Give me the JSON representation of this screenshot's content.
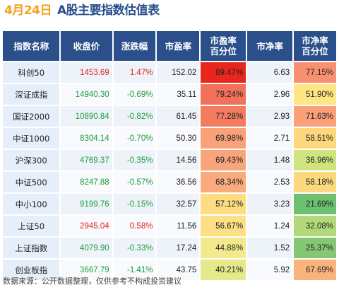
{
  "header": {
    "date": "4月24日",
    "title": "A股主要指数估值表"
  },
  "columns": [
    "指数名称",
    "收盘价",
    "涨跌幅",
    "市盈率",
    "市盈率\n百分位",
    "市净率",
    "市净率\n百分位"
  ],
  "rows": [
    {
      "name": "科创50",
      "close": "1453.69",
      "change": "1.47%",
      "pe": "152.02",
      "pe_pct": "89.47%",
      "pb": "6.63",
      "pb_pct": "77.15%",
      "dir": "up",
      "pe_color": "#e8261c",
      "pb_color": "#f99070"
    },
    {
      "name": "深证成指",
      "close": "14940.30",
      "change": "-0.69%",
      "pe": "35.11",
      "pe_pct": "79.24%",
      "pb": "2.96",
      "pb_pct": "51.90%",
      "dir": "down",
      "pe_color": "#f3715a",
      "pb_color": "#ffe685"
    },
    {
      "name": "国证2000",
      "close": "10890.84",
      "change": "-0.82%",
      "pe": "61.45",
      "pe_pct": "77.28%",
      "pb": "2.93",
      "pb_pct": "71.63%",
      "dir": "down",
      "pe_color": "#f47c5e",
      "pb_color": "#fba079"
    },
    {
      "name": "中证1000",
      "close": "8304.14",
      "change": "-0.70%",
      "pe": "50.30",
      "pe_pct": "69.98%",
      "pb": "2.71",
      "pb_pct": "58.51%",
      "dir": "down",
      "pe_color": "#f9a27a",
      "pb_color": "#fdd87d"
    },
    {
      "name": "沪深300",
      "close": "4769.37",
      "change": "-0.35%",
      "pe": "14.56",
      "pe_pct": "69.43%",
      "pb": "1.48",
      "pb_pct": "36.96%",
      "dir": "down",
      "pe_color": "#f9a57b",
      "pb_color": "#cfe47f"
    },
    {
      "name": "中证500",
      "close": "8247.88",
      "change": "-0.57%",
      "pe": "36.56",
      "pe_pct": "68.34%",
      "pb": "2.53",
      "pb_pct": "58.18%",
      "dir": "down",
      "pe_color": "#faab7d",
      "pb_color": "#fdd97e"
    },
    {
      "name": "中小100",
      "close": "9199.76",
      "change": "-0.15%",
      "pe": "32.57",
      "pe_pct": "57.12%",
      "pb": "3.23",
      "pb_pct": "21.69%",
      "dir": "down",
      "pe_color": "#fddc82",
      "pb_color": "#6cc070"
    },
    {
      "name": "上证50",
      "close": "2945.04",
      "change": "0.58%",
      "pe": "11.56",
      "pe_pct": "56.67%",
      "pb": "1.24",
      "pb_pct": "32.08%",
      "dir": "up",
      "pe_color": "#fde086",
      "pb_color": "#b1d97a"
    },
    {
      "name": "上证指数",
      "close": "4079.90",
      "change": "-0.33%",
      "pe": "17.24",
      "pe_pct": "44.88%",
      "pb": "1.52",
      "pb_pct": "25.37%",
      "dir": "down",
      "pe_color": "#f2ea8c",
      "pb_color": "#84c874"
    },
    {
      "name": "创业板指",
      "close": "3667.79",
      "change": "-1.41%",
      "pe": "43.75",
      "pe_pct": "40.21%",
      "pb": "5.92",
      "pb_pct": "67.69%",
      "dir": "down",
      "pe_color": "#e4e989",
      "pb_color": "#fbb37d"
    }
  ],
  "colors": {
    "header_bg": "#2b4f8a",
    "up": "#e0251b",
    "down": "#1b9d3c",
    "date": "#f5a21f",
    "title": "#2a4f8c"
  },
  "footer": "数据来源：公开数据整理，仅供参考不构成投资建议"
}
